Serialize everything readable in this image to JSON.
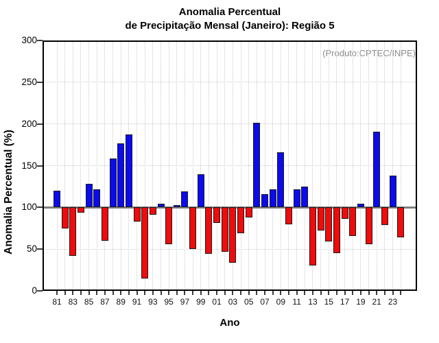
{
  "chart_data": {
    "type": "bar",
    "title": "Anomalia Percentual de Precipitação Mensal (Janeiro): Região 5",
    "title_lines": [
      "Anomalia Percentual",
      "de Precipitação Mensal (Janeiro): Região 5"
    ],
    "annotation": "(Produto:CPTEC/INPE)",
    "xlabel": "Ano",
    "ylabel": "Anomalia Percentual (%)",
    "ylim": [
      0,
      300
    ],
    "yticks": [
      0,
      50,
      100,
      150,
      200,
      250,
      300
    ],
    "baseline": 100,
    "grid": true,
    "legend": "none",
    "categories": [
      "1981",
      "1982",
      "1983",
      "1984",
      "1985",
      "1986",
      "1987",
      "1988",
      "1989",
      "1990",
      "1991",
      "1992",
      "1993",
      "1994",
      "1995",
      "1996",
      "1997",
      "1998",
      "1999",
      "2000",
      "2001",
      "2002",
      "2003",
      "2004",
      "2005",
      "2006",
      "2007",
      "2008",
      "2009",
      "2010",
      "2011",
      "2012",
      "2013",
      "2014",
      "2015",
      "2016",
      "2017",
      "2018",
      "2019",
      "2020",
      "2021",
      "2022",
      "2023",
      "2024"
    ],
    "x_tick_labels": [
      "81",
      "83",
      "85",
      "87",
      "89",
      "91",
      "93",
      "95",
      "97",
      "99",
      "01",
      "03",
      "05",
      "07",
      "09",
      "11",
      "13",
      "15",
      "17",
      "19",
      "21",
      "23"
    ],
    "values": [
      120,
      75,
      42,
      94,
      128,
      122,
      60,
      159,
      177,
      187,
      83,
      15,
      91,
      104,
      56,
      103,
      119,
      50,
      140,
      44,
      81,
      47,
      34,
      69,
      88,
      201,
      116,
      122,
      166,
      80,
      122,
      125,
      30,
      72,
      59,
      45,
      86,
      66,
      104,
      56,
      191,
      79,
      138,
      64
    ],
    "colors": {
      "above_baseline": "#0b0bee",
      "below_baseline": "#ee0c0c",
      "baseline_line": "#7f7f7f",
      "grid_line": "#c9c9c9",
      "annotation_text": "#8c8c8c"
    }
  }
}
